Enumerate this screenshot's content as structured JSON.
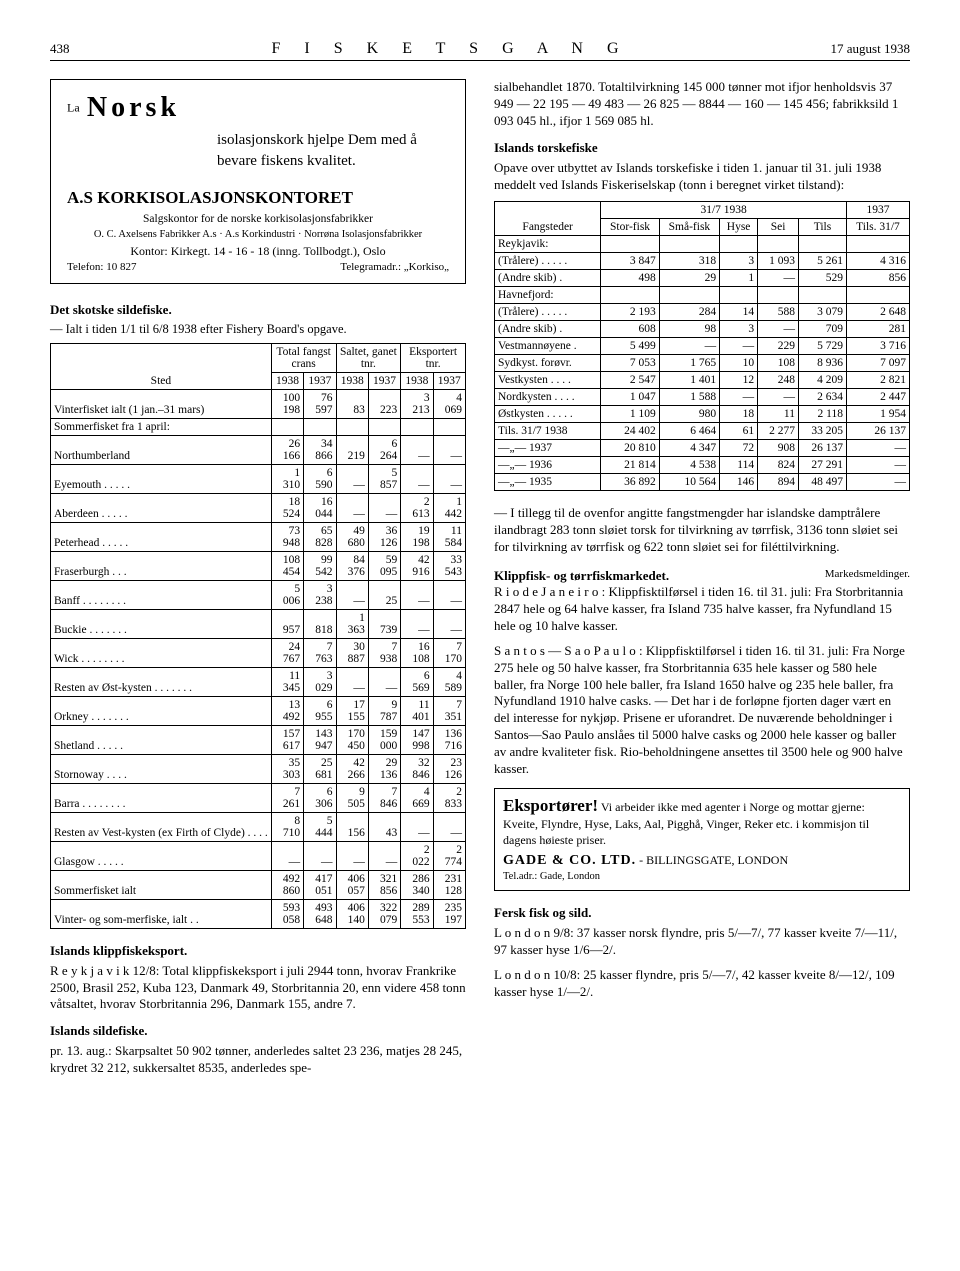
{
  "page": {
    "num": "438",
    "title": "F I S K E T S   G A N G",
    "date": "17 august 1938"
  },
  "ad1": {
    "la": "La",
    "brand": "Norsk",
    "lead": "isolasjonskork hjelpe Dem med å bevare fiskens kvalitet.",
    "company": "A.S KORKISOLASJONSKONTORET",
    "sub1": "Salgskontor for de norske korkisolasjonsfabrikker",
    "sub2": "O. C. Axelsens Fabrikker A.s · A.s Korkindustri · Norrøna Isolasjonsfabrikker",
    "office": "Kontor: Kirkegt. 14 - 16 - 18 (inng. Tollbodgt.), Oslo",
    "tel": "Telefon: 10 827",
    "tgr": "Telegramadr.: „Korkiso„"
  },
  "skotsk": {
    "h": "Det skotske sildefiske.",
    "sub": "— Ialt i tiden 1/1 til 6/8 1938 efter Fishery Board's opgave.",
    "colgrp": [
      "Sted",
      "Total fangst crans",
      "Saltet, ganet tnr.",
      "Eksportert tnr."
    ],
    "years": [
      "1938",
      "1937",
      "1938",
      "1937",
      "1938",
      "1937"
    ],
    "rows": [
      [
        "Vinterfisket ialt (1 jan.–31 mars)",
        "100 198",
        "76 597",
        "83",
        "223",
        "3 213",
        "4 069"
      ],
      [
        "Sommerfisket fra 1 april:",
        "",
        "",
        "",
        "",
        "",
        ""
      ],
      [
        "Northumberland",
        "26 166",
        "34 866",
        "219",
        "6 264",
        "—",
        "—"
      ],
      [
        "Eyemouth . . . . .",
        "1 310",
        "6 590",
        "—",
        "5 857",
        "—",
        "—"
      ],
      [
        "Aberdeen . . . . .",
        "18 524",
        "16 044",
        "—",
        "—",
        "2 613",
        "1 442"
      ],
      [
        "Peterhead . . . . .",
        "73 948",
        "65 828",
        "49 680",
        "36 126",
        "19 198",
        "11 584"
      ],
      [
        "Fraserburgh . . .",
        "108 454",
        "99 542",
        "84 376",
        "59 095",
        "42 916",
        "33 543"
      ],
      [
        "Banff . . . .  . . . .",
        "5 006",
        "3 238",
        "—",
        "25",
        "—",
        "—"
      ],
      [
        "Buckie . . . . . . .",
        "957",
        "818",
        "1 363",
        "739",
        "—",
        "—"
      ],
      [
        "Wick . . . . . . . .",
        "24 767",
        "7 763",
        "30 887",
        "7 938",
        "16 108",
        "7 170"
      ],
      [
        "Resten av Øst-kysten . . . . . . .",
        "11 345",
        "3 029",
        "—",
        "—",
        "6 569",
        "4 589"
      ],
      [
        "Orkney . . . . . . .",
        "13 492",
        "6 955",
        "17 155",
        "9 787",
        "11 401",
        "7 351"
      ],
      [
        "Shetland . . . . .",
        "157 617",
        "143 947",
        "170 450",
        "159 000",
        "147 998",
        "136 716"
      ],
      [
        "Stornoway . . . .",
        "35 303",
        "25 681",
        "42 266",
        "29 136",
        "32 846",
        "23 126"
      ],
      [
        "Barra . . . . . . . .",
        "7 261",
        "6 306",
        "9 505",
        "7 846",
        "4 669",
        "2 833"
      ],
      [
        "Resten av Vest-kysten (ex Firth of Clyde) . . . .",
        "8 710",
        "5 444",
        "156",
        "43",
        "—",
        "—"
      ],
      [
        "Glasgow . . . . .",
        "—",
        "—",
        "—",
        "—",
        "2 022",
        "2 774"
      ],
      [
        "Sommerfisket ialt",
        "492 860",
        "417 051",
        "406 057",
        "321 856",
        "286 340",
        "231 128"
      ],
      [
        "Vinter- og som-merfiske, ialt . .",
        "593 058",
        "493 648",
        "406 140",
        "322 079",
        "289 553",
        "235 197"
      ]
    ]
  },
  "klipp": {
    "h": "Islands klippfiskeksport.",
    "p": "R e y k j a v i k 12/8: Total klippfiskeksport i juli 2944 tonn, hvorav Frankrike 2500, Brasil 252, Kuba 123, Danmark 49, Storbritannia 20, enn videre 458 tonn våtsaltet, hvorav Storbritannia 296, Danmark 155, andre 7."
  },
  "silde": {
    "h": "Islands sildefiske.",
    "p": "pr. 13. aug.: Skarpsaltet 50 902 tønner, anderledes saltet 23 236, matjes 28 245, krydret 32 212, sukkersaltet 8535, anderledes spe-"
  },
  "topright": "sialbehandlet 1870. Totaltilvirkning 145 000 tønner mot ifjor henholdsvis 37 949 — 22 195 — 49 483 — 26 825 — 8844 — 160 — 145 456; fabrikksild 1 093 045 hl., ifjor 1 569 085 hl.",
  "torsk": {
    "h": "Islands torskefiske",
    "lead": "Opave over utbyttet av Islands torskefiske i tiden 1. januar til 31. juli 1938 meddelt ved Islands Fiskeriselskap (tonn i beregnet virket tilstand):",
    "head": {
      "fang": "Fangsteder",
      "g1": "31/7 1938",
      "y37": "1937",
      "c": [
        "Stor-fisk",
        "Små-fisk",
        "Hyse",
        "Sei",
        "Tils",
        "Tils. 31/7"
      ]
    },
    "rows": [
      [
        "Reykjavik:",
        "",
        "",
        "",
        "",
        "",
        ""
      ],
      [
        "(Trålere) . . . . .",
        "3 847",
        "318",
        "3",
        "1 093",
        "5 261",
        "4 316"
      ],
      [
        "(Andre skib) .",
        "498",
        "29",
        "1",
        "—",
        "529",
        "856"
      ],
      [
        "Havnefjord:",
        "",
        "",
        "",
        "",
        "",
        ""
      ],
      [
        "(Trålere) . . . . .",
        "2 193",
        "284",
        "14",
        "588",
        "3 079",
        "2 648"
      ],
      [
        "(Andre skib) .",
        "608",
        "98",
        "3",
        "—",
        "709",
        "281"
      ],
      [
        "Vestmannøyene .",
        "5 499",
        "—",
        "—",
        "229",
        "5 729",
        "3 716"
      ],
      [
        "Sydkyst. forøvr.",
        "7 053",
        "1 765",
        "10",
        "108",
        "8 936",
        "7 097"
      ],
      [
        "Vestkysten . . . .",
        "2 547",
        "1 401",
        "12",
        "248",
        "4 209",
        "2 821"
      ],
      [
        "Nordkysten . . . .",
        "1 047",
        "1 588",
        "—",
        "—",
        "2 634",
        "2 447"
      ],
      [
        "Østkysten . . . . .",
        "1 109",
        "980",
        "18",
        "11",
        "2 118",
        "1 954"
      ]
    ],
    "tot": [
      [
        "Tils. 31/7 1938",
        "24 402",
        "6 464",
        "61",
        "2 277",
        "33 205",
        "26 137"
      ],
      [
        "—„— 1937",
        "20 810",
        "4 347",
        "72",
        "908",
        "26 137",
        "—"
      ],
      [
        "—„— 1936",
        "21 814",
        "4 538",
        "114",
        "824",
        "27 291",
        "—"
      ],
      [
        "—„— 1935",
        "36 892",
        "10 564",
        "146",
        "894",
        "48 497",
        "—"
      ]
    ],
    "foot": "— I tillegg til de ovenfor angitte fangstmengder har islandske damptrålere ilandbragt 283 tonn sløiet torsk for tilvirkning av tørrfisk, 3136 tonn sløiet sei for tilvirkning av tørrfisk og 622 tonn sløiet sei for filéttilvirkning."
  },
  "market": {
    "h": "Klippfisk- og tørrfiskmarkedet.",
    "r": "Markedsmeldinger.",
    "p1": "R i o  d e  J a n e i r o : Klippfisktilførsel i tiden 16. til 31. juli: Fra Storbritannia 2847 hele og 64 halve kasser, fra Island 735 halve kasser, fra Nyfundland 15 hele og 10 halve kasser.",
    "p2": "S a n t o s — S a o  P a u l o : Klippfisktilførsel i tiden 16. til 31. juli: Fra Norge 275 hele og 50 halve kasser, fra Storbritannia 635 hele kasser og 580 hele baller, fra Norge 100 hele baller, fra Island 1650 halve og 235 hele baller, fra Nyfundland 1910 halve casks. — Det har i de forløpne fjorten dager vært en del interesse for nykjøp. Prisene er uforandret. De nuværende beholdninger i Santos—Sao Paulo anslåes til 5000 halve casks og 2000 hele kasser og baller av andre kvaliteter fisk. Rio-beholdningene ansettes til 3500 hele og 900 halve kasser."
  },
  "ad2": {
    "big": "Eksportører!",
    "txt": "Vi arbeider ikke med agenter i Norge og mottar gjerne: Kveite, Flyndre, Hyse, Laks, Aal, Pigghå, Vinger, Reker etc. i kommisjon til dagens høieste priser.",
    "gade": "GADE & CO. LTD.",
    "loc": " - BILLINGSGATE, LONDON",
    "tel": "Tel.adr.: Gade, London"
  },
  "fersk": {
    "h": "Fersk fisk og sild.",
    "p1": "L o n d o n 9/8: 37 kasser norsk flyndre, pris 5/—7/, 77 kasser kveite 7/—11/, 97 kasser hyse 1/6—2/.",
    "p2": "L o n d o n 10/8: 25 kasser flyndre, pris 5/—7/, 42 kasser kveite 8/—12/, 109 kasser hyse 1/—2/."
  }
}
